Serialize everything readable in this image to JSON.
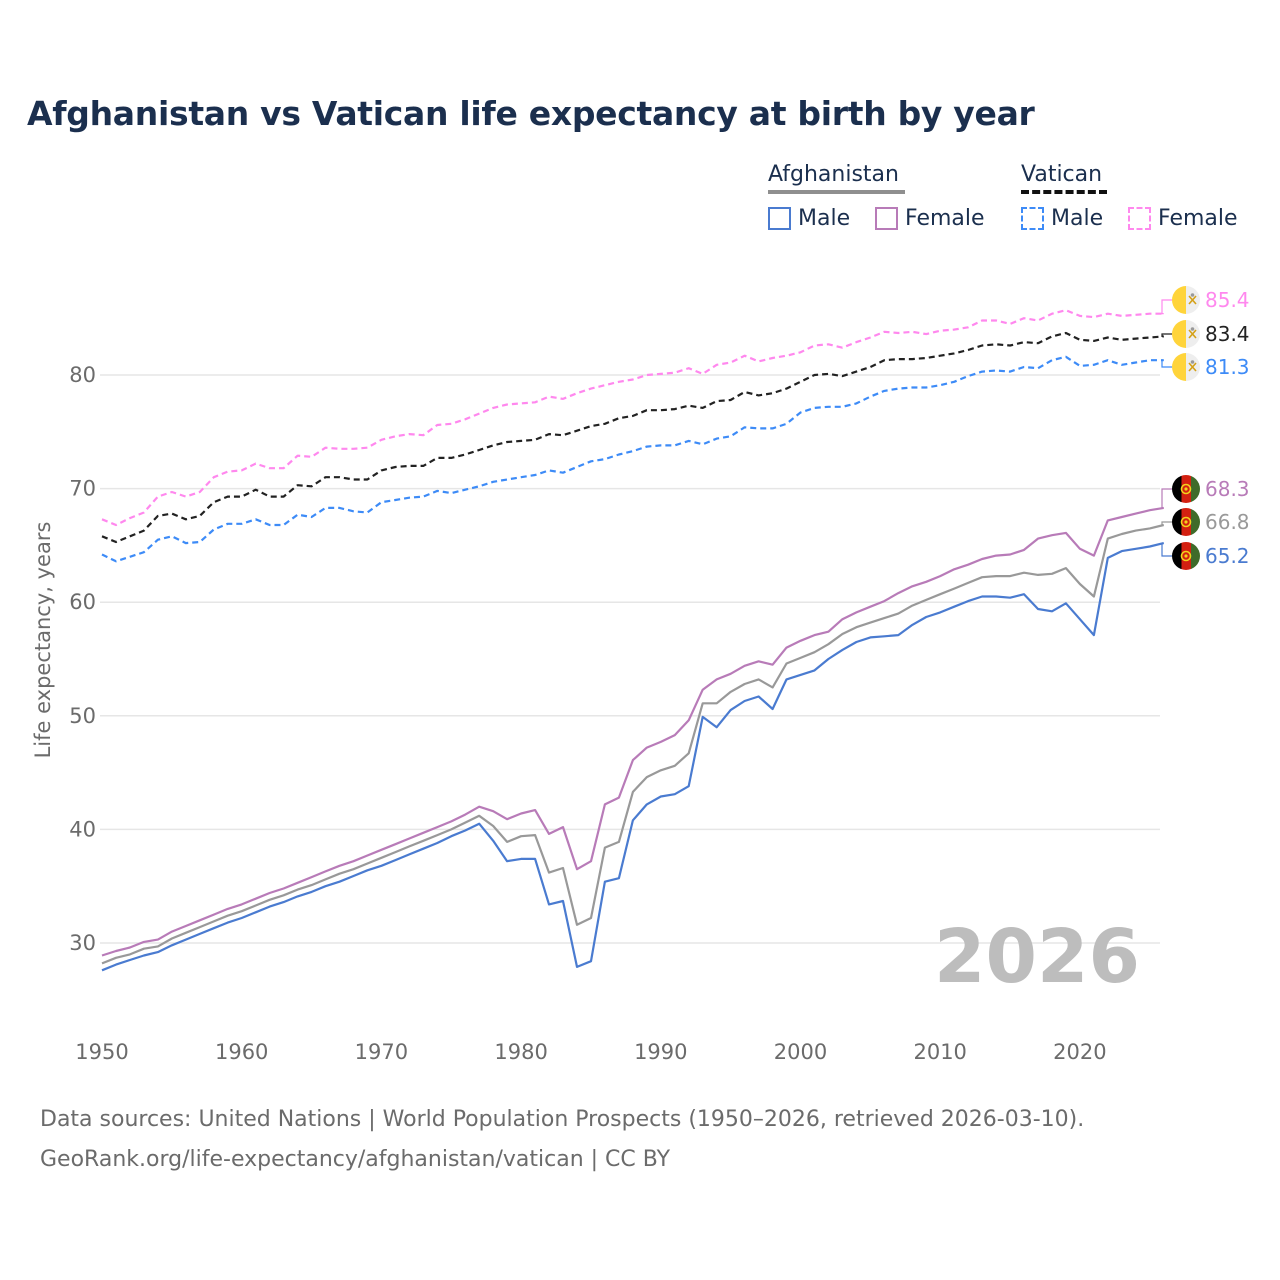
{
  "title": "Afghanistan vs Vatican life expectancy at birth by year",
  "legend": {
    "groups": [
      {
        "name": "Afghanistan",
        "items": [
          "Male",
          "Female"
        ]
      },
      {
        "name": "Vatican",
        "items": [
          "Male",
          "Female"
        ]
      }
    ]
  },
  "year_watermark": "2026",
  "footer": {
    "line1": "Data sources: United Nations | World Population Prospects (1950–2026, retrieved 2026-03-10).",
    "line2": "GeoRank.org/life-expectancy/afghanistan/vatican | CC BY"
  },
  "chart_data": {
    "type": "line",
    "title": "Afghanistan vs Vatican life expectancy at birth by year",
    "xlabel": "",
    "ylabel": "Life expectancy, years",
    "xlim": [
      1950,
      2026
    ],
    "ylim": [
      24,
      90
    ],
    "x_ticks": [
      "1950",
      "1960",
      "1970",
      "1980",
      "1990",
      "2000",
      "2010",
      "2020"
    ],
    "y_ticks": [
      "30",
      "40",
      "50",
      "60",
      "70",
      "80"
    ],
    "grid": true,
    "legend_position": "top-right",
    "x_start": 1950,
    "series": [
      {
        "name": "Vatican Female",
        "country": "Vatican",
        "sex": "Female",
        "color": "#ff88ee",
        "dashed": true,
        "end_label": "85.4",
        "flag": "vatican-flag",
        "values": [
          67.3,
          66.8,
          67.4,
          67.9,
          69.3,
          69.7,
          69.3,
          69.7,
          71.0,
          71.5,
          71.6,
          72.2,
          71.8,
          71.8,
          72.9,
          72.8,
          73.6,
          73.5,
          73.5,
          73.6,
          74.3,
          74.6,
          74.8,
          74.7,
          75.6,
          75.7,
          76.1,
          76.6,
          77.1,
          77.4,
          77.5,
          77.6,
          78.1,
          77.9,
          78.4,
          78.8,
          79.1,
          79.4,
          79.6,
          80.0,
          80.1,
          80.2,
          80.6,
          80.1,
          80.9,
          81.1,
          81.7,
          81.2,
          81.5,
          81.7,
          82.0,
          82.6,
          82.7,
          82.4,
          82.9,
          83.3,
          83.8,
          83.7,
          83.8,
          83.6,
          83.9,
          84.0,
          84.2,
          84.8,
          84.8,
          84.5,
          85.0,
          84.8,
          85.4,
          85.7,
          85.2,
          85.1,
          85.4,
          85.2,
          85.3,
          85.4,
          85.4
        ]
      },
      {
        "name": "Vatican Total",
        "country": "Vatican",
        "sex": "Total",
        "color": "#222222",
        "dashed": true,
        "end_label": "83.4",
        "flag": "vatican-flag",
        "values": [
          65.8,
          65.3,
          65.8,
          66.3,
          67.6,
          67.8,
          67.3,
          67.6,
          68.8,
          69.3,
          69.3,
          69.9,
          69.3,
          69.3,
          70.3,
          70.2,
          71.0,
          71.0,
          70.8,
          70.8,
          71.6,
          71.9,
          72.0,
          72.0,
          72.7,
          72.7,
          73.0,
          73.4,
          73.8,
          74.1,
          74.2,
          74.3,
          74.8,
          74.7,
          75.1,
          75.5,
          75.7,
          76.2,
          76.4,
          76.9,
          76.9,
          77.0,
          77.3,
          77.1,
          77.7,
          77.8,
          78.5,
          78.2,
          78.4,
          78.8,
          79.4,
          80.0,
          80.1,
          79.9,
          80.3,
          80.7,
          81.3,
          81.4,
          81.4,
          81.5,
          81.7,
          81.9,
          82.2,
          82.6,
          82.7,
          82.6,
          82.9,
          82.8,
          83.4,
          83.7,
          83.1,
          83.0,
          83.3,
          83.1,
          83.2,
          83.3,
          83.4
        ]
      },
      {
        "name": "Vatican Male",
        "country": "Vatican",
        "sex": "Male",
        "color": "#3d8bf7",
        "dashed": true,
        "end_label": "81.3",
        "flag": "vatican-flag",
        "values": [
          64.2,
          63.6,
          64.0,
          64.4,
          65.5,
          65.8,
          65.2,
          65.3,
          66.4,
          66.9,
          66.9,
          67.3,
          66.8,
          66.8,
          67.7,
          67.5,
          68.3,
          68.3,
          68.0,
          67.9,
          68.8,
          69.0,
          69.2,
          69.3,
          69.8,
          69.6,
          69.9,
          70.2,
          70.6,
          70.8,
          71.0,
          71.2,
          71.6,
          71.4,
          71.9,
          72.4,
          72.6,
          73.0,
          73.3,
          73.7,
          73.8,
          73.8,
          74.2,
          73.9,
          74.4,
          74.6,
          75.4,
          75.3,
          75.3,
          75.7,
          76.7,
          77.1,
          77.2,
          77.2,
          77.5,
          78.1,
          78.6,
          78.8,
          78.9,
          78.9,
          79.1,
          79.4,
          79.9,
          80.3,
          80.4,
          80.3,
          80.7,
          80.6,
          81.3,
          81.6,
          80.8,
          80.9,
          81.3,
          80.9,
          81.1,
          81.3,
          81.3
        ]
      },
      {
        "name": "Afghanistan Female",
        "country": "Afghanistan",
        "sex": "Female",
        "color": "#b87bb8",
        "dashed": false,
        "end_label": "68.3",
        "flag": "afghanistan-flag",
        "values": [
          28.9,
          29.3,
          29.6,
          30.1,
          30.3,
          31.0,
          31.5,
          32.0,
          32.5,
          33.0,
          33.4,
          33.9,
          34.4,
          34.8,
          35.3,
          35.8,
          36.3,
          36.8,
          37.2,
          37.7,
          38.2,
          38.7,
          39.2,
          39.7,
          40.2,
          40.7,
          41.3,
          42.0,
          41.6,
          40.9,
          41.4,
          41.7,
          39.6,
          40.2,
          36.5,
          37.2,
          42.2,
          42.8,
          46.1,
          47.2,
          47.7,
          48.3,
          49.6,
          52.3,
          53.2,
          53.7,
          54.4,
          54.8,
          54.5,
          56.0,
          56.6,
          57.1,
          57.4,
          58.5,
          59.1,
          59.6,
          60.1,
          60.8,
          61.4,
          61.8,
          62.3,
          62.9,
          63.3,
          63.8,
          64.1,
          64.2,
          64.6,
          65.6,
          65.9,
          66.1,
          64.7,
          64.1,
          67.2,
          67.5,
          67.8,
          68.1,
          68.3
        ]
      },
      {
        "name": "Afghanistan Total",
        "country": "Afghanistan",
        "sex": "Total",
        "color": "#999999",
        "dashed": false,
        "end_label": "66.8",
        "flag": "afghanistan-flag",
        "values": [
          28.2,
          28.7,
          29.0,
          29.5,
          29.7,
          30.4,
          30.9,
          31.4,
          31.9,
          32.4,
          32.8,
          33.3,
          33.8,
          34.2,
          34.7,
          35.1,
          35.6,
          36.1,
          36.5,
          37.0,
          37.5,
          38.0,
          38.5,
          39.0,
          39.5,
          40.0,
          40.6,
          41.2,
          40.3,
          38.9,
          39.4,
          39.5,
          36.2,
          36.6,
          31.6,
          32.2,
          38.4,
          38.9,
          43.3,
          44.6,
          45.2,
          45.6,
          46.7,
          51.1,
          51.1,
          52.1,
          52.8,
          53.2,
          52.5,
          54.6,
          55.1,
          55.6,
          56.3,
          57.2,
          57.8,
          58.2,
          58.6,
          59.0,
          59.7,
          60.2,
          60.7,
          61.2,
          61.7,
          62.2,
          62.3,
          62.3,
          62.6,
          62.4,
          62.5,
          63.0,
          61.6,
          60.5,
          65.6,
          66.0,
          66.3,
          66.5,
          66.8
        ]
      },
      {
        "name": "Afghanistan Male",
        "country": "Afghanistan",
        "sex": "Male",
        "color": "#4a7bd0",
        "dashed": false,
        "end_label": "65.2",
        "flag": "afghanistan-flag",
        "values": [
          27.6,
          28.1,
          28.5,
          28.9,
          29.2,
          29.8,
          30.3,
          30.8,
          31.3,
          31.8,
          32.2,
          32.7,
          33.2,
          33.6,
          34.1,
          34.5,
          35.0,
          35.4,
          35.9,
          36.4,
          36.8,
          37.3,
          37.8,
          38.3,
          38.8,
          39.4,
          39.9,
          40.5,
          39.0,
          37.2,
          37.4,
          37.4,
          33.4,
          33.7,
          27.9,
          28.4,
          35.4,
          35.7,
          40.8,
          42.2,
          42.9,
          43.1,
          43.8,
          49.9,
          49.0,
          50.5,
          51.3,
          51.7,
          50.6,
          53.2,
          53.6,
          54.0,
          55.0,
          55.8,
          56.5,
          56.9,
          57.0,
          57.1,
          58.0,
          58.7,
          59.1,
          59.6,
          60.1,
          60.5,
          60.5,
          60.4,
          60.7,
          59.4,
          59.2,
          59.9,
          58.5,
          57.1,
          63.9,
          64.5,
          64.7,
          64.9,
          65.2
        ]
      }
    ]
  }
}
